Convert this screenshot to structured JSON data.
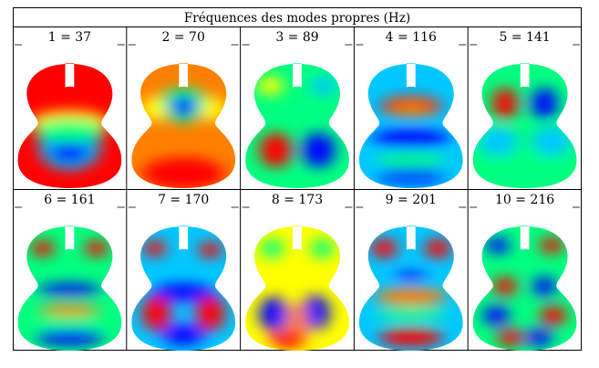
{
  "table": {
    "title": "Fréquences des modes propres (Hz)",
    "modes": [
      {
        "label": "1 = 37",
        "mode": 1,
        "frequency_hz": 37
      },
      {
        "label": "2 = 70",
        "mode": 2,
        "frequency_hz": 70
      },
      {
        "label": "3 = 89",
        "mode": 3,
        "frequency_hz": 89
      },
      {
        "label": "4 = 116",
        "mode": 4,
        "frequency_hz": 116
      },
      {
        "label": "5 = 141",
        "mode": 5,
        "frequency_hz": 141
      },
      {
        "label": "6 = 161",
        "mode": 6,
        "frequency_hz": 161
      },
      {
        "label": "7 = 170",
        "mode": 7,
        "frequency_hz": 170
      },
      {
        "label": "8 = 173",
        "mode": 8,
        "frequency_hz": 173
      },
      {
        "label": "9 = 201",
        "mode": 9,
        "frequency_hz": 201
      },
      {
        "label": "10 = 216",
        "mode": 10,
        "frequency_hz": 216
      }
    ]
  },
  "colormap": [
    "#0000ff",
    "#00c8ff",
    "#00ff80",
    "#ffff00",
    "#ff8000",
    "#ff0000"
  ]
}
